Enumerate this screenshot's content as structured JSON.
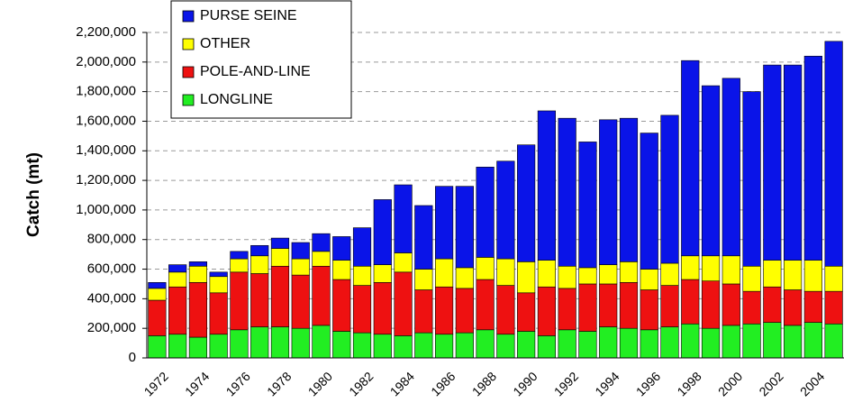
{
  "chart_data": {
    "type": "stacked-bar",
    "y_label": "Catch (mt)",
    "categories": [
      "1972",
      null,
      "1974",
      null,
      "1976",
      null,
      "1978",
      null,
      "1980",
      null,
      "1982",
      null,
      "1984",
      null,
      "1986",
      null,
      "1988",
      null,
      "1990",
      null,
      "1992",
      null,
      "1994",
      null,
      "1996",
      null,
      "1998",
      null,
      "2000",
      null,
      "2002",
      null,
      "2004",
      null
    ],
    "series": [
      {
        "name": "LONGLINE",
        "color": "#22ee22",
        "values": [
          150000,
          160000,
          140000,
          160000,
          190000,
          210000,
          210000,
          200000,
          220000,
          180000,
          170000,
          160000,
          150000,
          170000,
          160000,
          170000,
          190000,
          160000,
          180000,
          150000,
          190000,
          180000,
          210000,
          200000,
          190000,
          210000,
          230000,
          200000,
          220000,
          230000,
          240000,
          220000,
          240000,
          230000
        ]
      },
      {
        "name": "POLE-AND-LINE",
        "color": "#ee1111",
        "values": [
          240000,
          320000,
          370000,
          280000,
          390000,
          360000,
          410000,
          360000,
          400000,
          350000,
          320000,
          350000,
          430000,
          290000,
          320000,
          300000,
          340000,
          330000,
          260000,
          330000,
          280000,
          320000,
          290000,
          310000,
          270000,
          280000,
          300000,
          320000,
          280000,
          220000,
          240000,
          240000,
          210000,
          220000
        ]
      },
      {
        "name": "OTHER",
        "color": "#ffff00",
        "values": [
          80000,
          100000,
          110000,
          110000,
          90000,
          120000,
          120000,
          110000,
          100000,
          130000,
          130000,
          120000,
          130000,
          140000,
          190000,
          140000,
          150000,
          180000,
          210000,
          180000,
          150000,
          110000,
          130000,
          140000,
          140000,
          150000,
          160000,
          170000,
          190000,
          170000,
          180000,
          200000,
          210000,
          170000
        ]
      },
      {
        "name": "PURSE SEINE",
        "color": "#0a14e8",
        "values": [
          40000,
          50000,
          30000,
          30000,
          50000,
          70000,
          70000,
          110000,
          120000,
          160000,
          260000,
          440000,
          460000,
          430000,
          490000,
          550000,
          610000,
          660000,
          790000,
          1010000,
          1000000,
          850000,
          980000,
          970000,
          920000,
          1000000,
          1320000,
          1150000,
          1200000,
          1180000,
          1320000,
          1320000,
          1380000,
          1520000
        ]
      }
    ],
    "ylim": [
      0,
      2200000
    ],
    "yticks": [
      0,
      {
        "value": 200000,
        "label": "200,000"
      },
      {
        "value": 400000,
        "label": "400,000"
      },
      {
        "value": 600000,
        "label": "600,000"
      },
      {
        "value": 800000,
        "label": "800,000"
      },
      {
        "value": 1000000,
        "label": "1,000,000"
      },
      {
        "value": 1200000,
        "label": "1,200,000"
      },
      {
        "value": 1400000,
        "label": "1,400,000"
      },
      {
        "value": 1600000,
        "label": "1,600,000"
      },
      {
        "value": 1800000,
        "label": "1,800,000"
      },
      {
        "value": 2000000,
        "label": "2,000,000"
      },
      {
        "value": 2200000,
        "label": "2,200,000"
      }
    ],
    "grid": true
  }
}
